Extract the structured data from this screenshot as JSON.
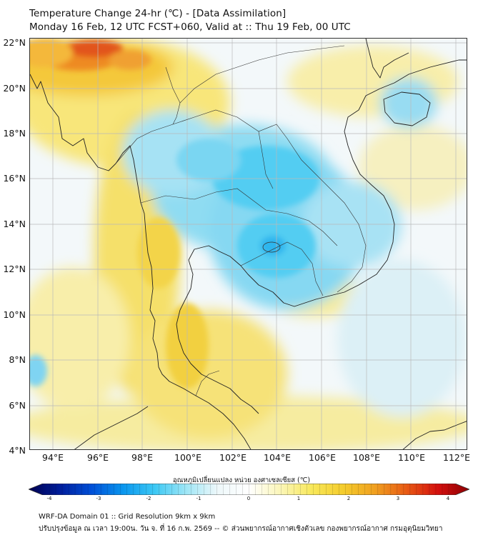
{
  "header": {
    "title_line1": "Temperature Change 24-hr (℃) - [Data Assimilation]",
    "title_line2": "Monday 16 Feb, 12 UTC FCST+060, Valid at :: Thu 19 Feb, 00 UTC"
  },
  "axes": {
    "lat_labels": [
      "22°N",
      "20°N",
      "18°N",
      "16°N",
      "14°N",
      "12°N",
      "10°N",
      "8°N",
      "6°N",
      "4°N"
    ],
    "lon_labels": [
      "94°E",
      "96°E",
      "98°E",
      "100°E",
      "102°E",
      "104°E",
      "106°E",
      "108°E",
      "110°E",
      "112°E"
    ]
  },
  "colorbar": {
    "label": "อุณหภูมิเปลี่ยนแปลง หน่วย องศาเซลเซียส (℃)",
    "tick_labels": [
      "-4",
      "-3",
      "-2",
      "-1",
      "0",
      "1",
      "2",
      "3",
      "4"
    ],
    "colors": [
      "#00004e",
      "#001e9c",
      "#0050d8",
      "#0a96ee",
      "#3cc8f4",
      "#9ee6f6",
      "#eef8fa",
      "#ffffff",
      "#fbf6b8",
      "#f8e85a",
      "#f4cc2c",
      "#f0a020",
      "#e85a14",
      "#d4100e",
      "#8c0004"
    ]
  },
  "footer": {
    "line1": "WRF-DA Domain 01 :: Grid Resolution 9km x 9km",
    "line2": "ปรับปรุงข้อมูล ณ เวลา 19:00น. วัน จ. ที่ 16 ก.พ. 2569 -- © ส่วนพยากรณ์อากาศเชิงตัวเลข กองพยากรณ์อากาศ กรมอุตุนิยมวิทยา"
  }
}
